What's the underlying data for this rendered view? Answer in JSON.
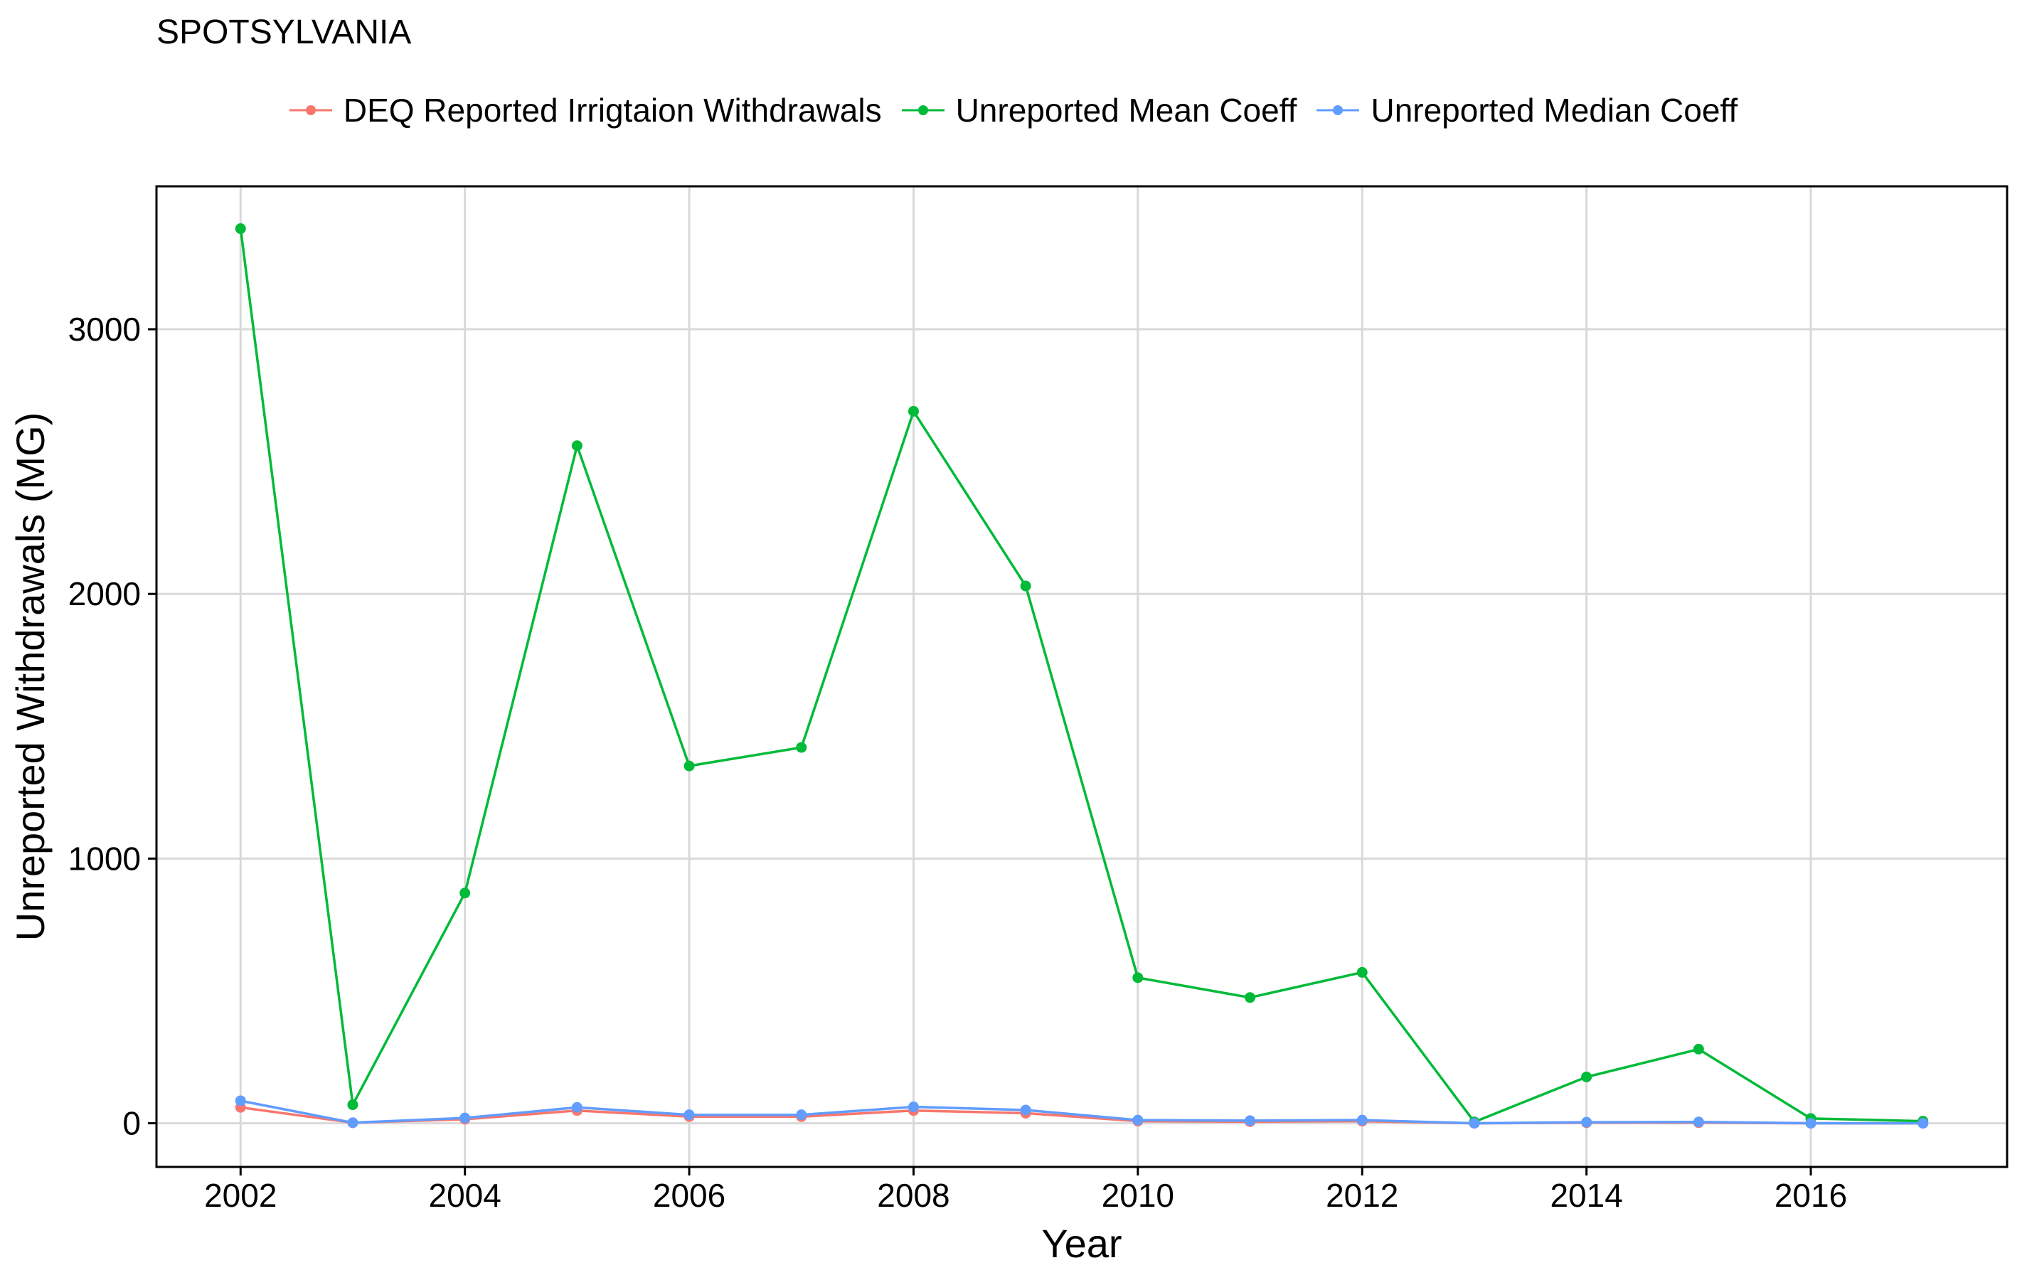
{
  "chart_data": {
    "type": "line",
    "title": "SPOTSYLVANIA",
    "xlabel": "Year",
    "ylabel": "Unreported Withdrawals (MG)",
    "xlim": [
      2001.25,
      2017.75
    ],
    "ylim": [
      -165,
      3540
    ],
    "x_ticks": [
      2002,
      2004,
      2006,
      2008,
      2010,
      2012,
      2014,
      2016
    ],
    "y_ticks": [
      0,
      1000,
      2000,
      3000
    ],
    "grid": true,
    "legend_position": "top",
    "x": [
      2002,
      2003,
      2004,
      2005,
      2006,
      2007,
      2008,
      2009,
      2010,
      2011,
      2012,
      2013,
      2014,
      2015,
      2016,
      2017
    ],
    "series": [
      {
        "name": "DEQ Reported Irrigtaion Withdrawals",
        "color": "#F8766D",
        "values": [
          60,
          2,
          15,
          48,
          25,
          25,
          48,
          38,
          8,
          6,
          8,
          0,
          2,
          2,
          0,
          0
        ]
      },
      {
        "name": "Unreported Mean Coeff",
        "color": "#00BA38",
        "values": [
          3380,
          70,
          870,
          2560,
          1350,
          1420,
          2690,
          2030,
          550,
          475,
          570,
          5,
          175,
          280,
          18,
          8
        ]
      },
      {
        "name": "Unreported Median Coeff",
        "color": "#619CFF",
        "values": [
          85,
          2,
          20,
          60,
          32,
          32,
          62,
          50,
          12,
          10,
          12,
          0,
          4,
          5,
          0,
          0
        ]
      }
    ]
  }
}
